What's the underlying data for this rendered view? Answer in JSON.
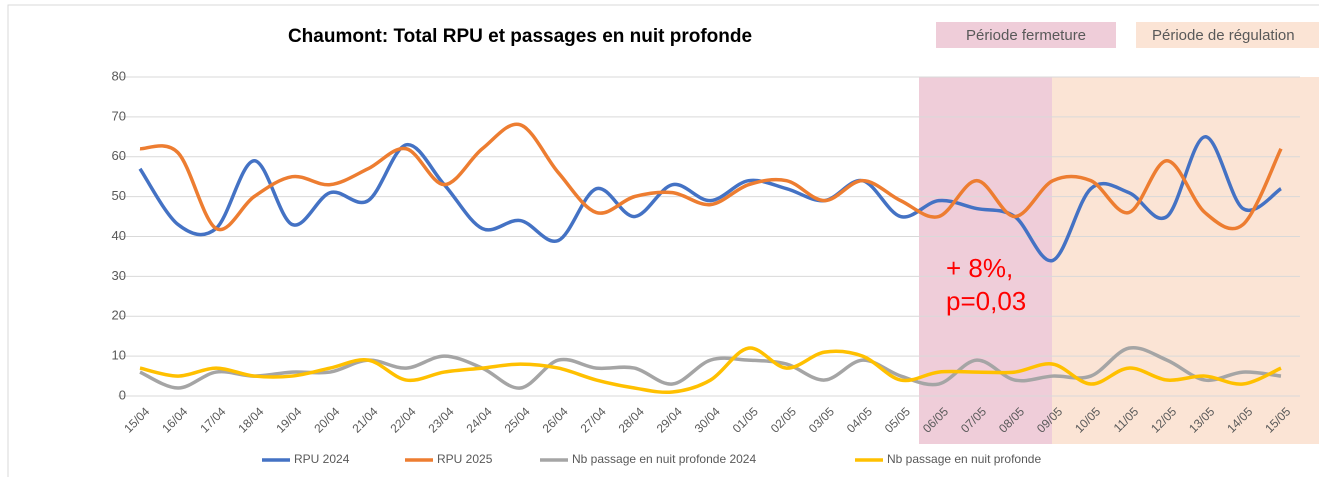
{
  "chart_data": {
    "type": "line",
    "title": "Chaumont: Total RPU et passages en nuit profonde",
    "annotations": [
      "Période fermeture",
      "Période de régulation",
      "+ 8%,",
      "p=0,03"
    ],
    "categories": [
      "15/04",
      "16/04",
      "17/04",
      "18/04",
      "19/04",
      "20/04",
      "21/04",
      "22/04",
      "23/04",
      "24/04",
      "25/04",
      "26/04",
      "27/04",
      "28/04",
      "29/04",
      "30/04",
      "01/05",
      "02/05",
      "03/05",
      "04/05",
      "05/05",
      "06/05",
      "07/05",
      "08/05",
      "09/05",
      "10/05",
      "11/05",
      "12/05",
      "13/05",
      "14/05",
      "15/05"
    ],
    "series": [
      {
        "name": "RPU 2024",
        "color": "#4472c4",
        "values": [
          57,
          43,
          42,
          59,
          43,
          51,
          49,
          63,
          53,
          42,
          44,
          39,
          52,
          45,
          53,
          49,
          54,
          52,
          49,
          54,
          45,
          49,
          47,
          45,
          34,
          52,
          51,
          45,
          65,
          47,
          52
        ]
      },
      {
        "name": "RPU 2025",
        "color": "#ed7d31",
        "values": [
          62,
          61,
          42,
          50,
          55,
          53,
          57,
          62,
          53,
          62,
          68,
          56,
          46,
          50,
          51,
          48,
          53,
          54,
          49,
          54,
          49,
          45,
          54,
          45,
          54,
          54,
          46,
          59,
          46,
          43,
          62
        ]
      },
      {
        "name": "Nb passage en nuit profonde 2024",
        "color": "#a5a5a5",
        "values": [
          6,
          2,
          6,
          5,
          6,
          6,
          9,
          7,
          10,
          7,
          2,
          9,
          7,
          7,
          3,
          9,
          9,
          8,
          4,
          9,
          5,
          3,
          9,
          4,
          5,
          5,
          12,
          9,
          4,
          6,
          5
        ]
      },
      {
        "name": "Nb passage en nuit profonde",
        "color": "#ffc000",
        "values": [
          7,
          5,
          7,
          5,
          5,
          7,
          9,
          4,
          6,
          7,
          8,
          7,
          4,
          2,
          1,
          4,
          12,
          7,
          11,
          10,
          4,
          6,
          6,
          6,
          8,
          3,
          7,
          4,
          5,
          3,
          7
        ]
      }
    ],
    "ylim": [
      0,
      80
    ],
    "yticks": [
      0,
      10,
      20,
      30,
      40,
      50,
      60,
      70,
      80
    ],
    "grid": true,
    "legend": "bottom"
  }
}
